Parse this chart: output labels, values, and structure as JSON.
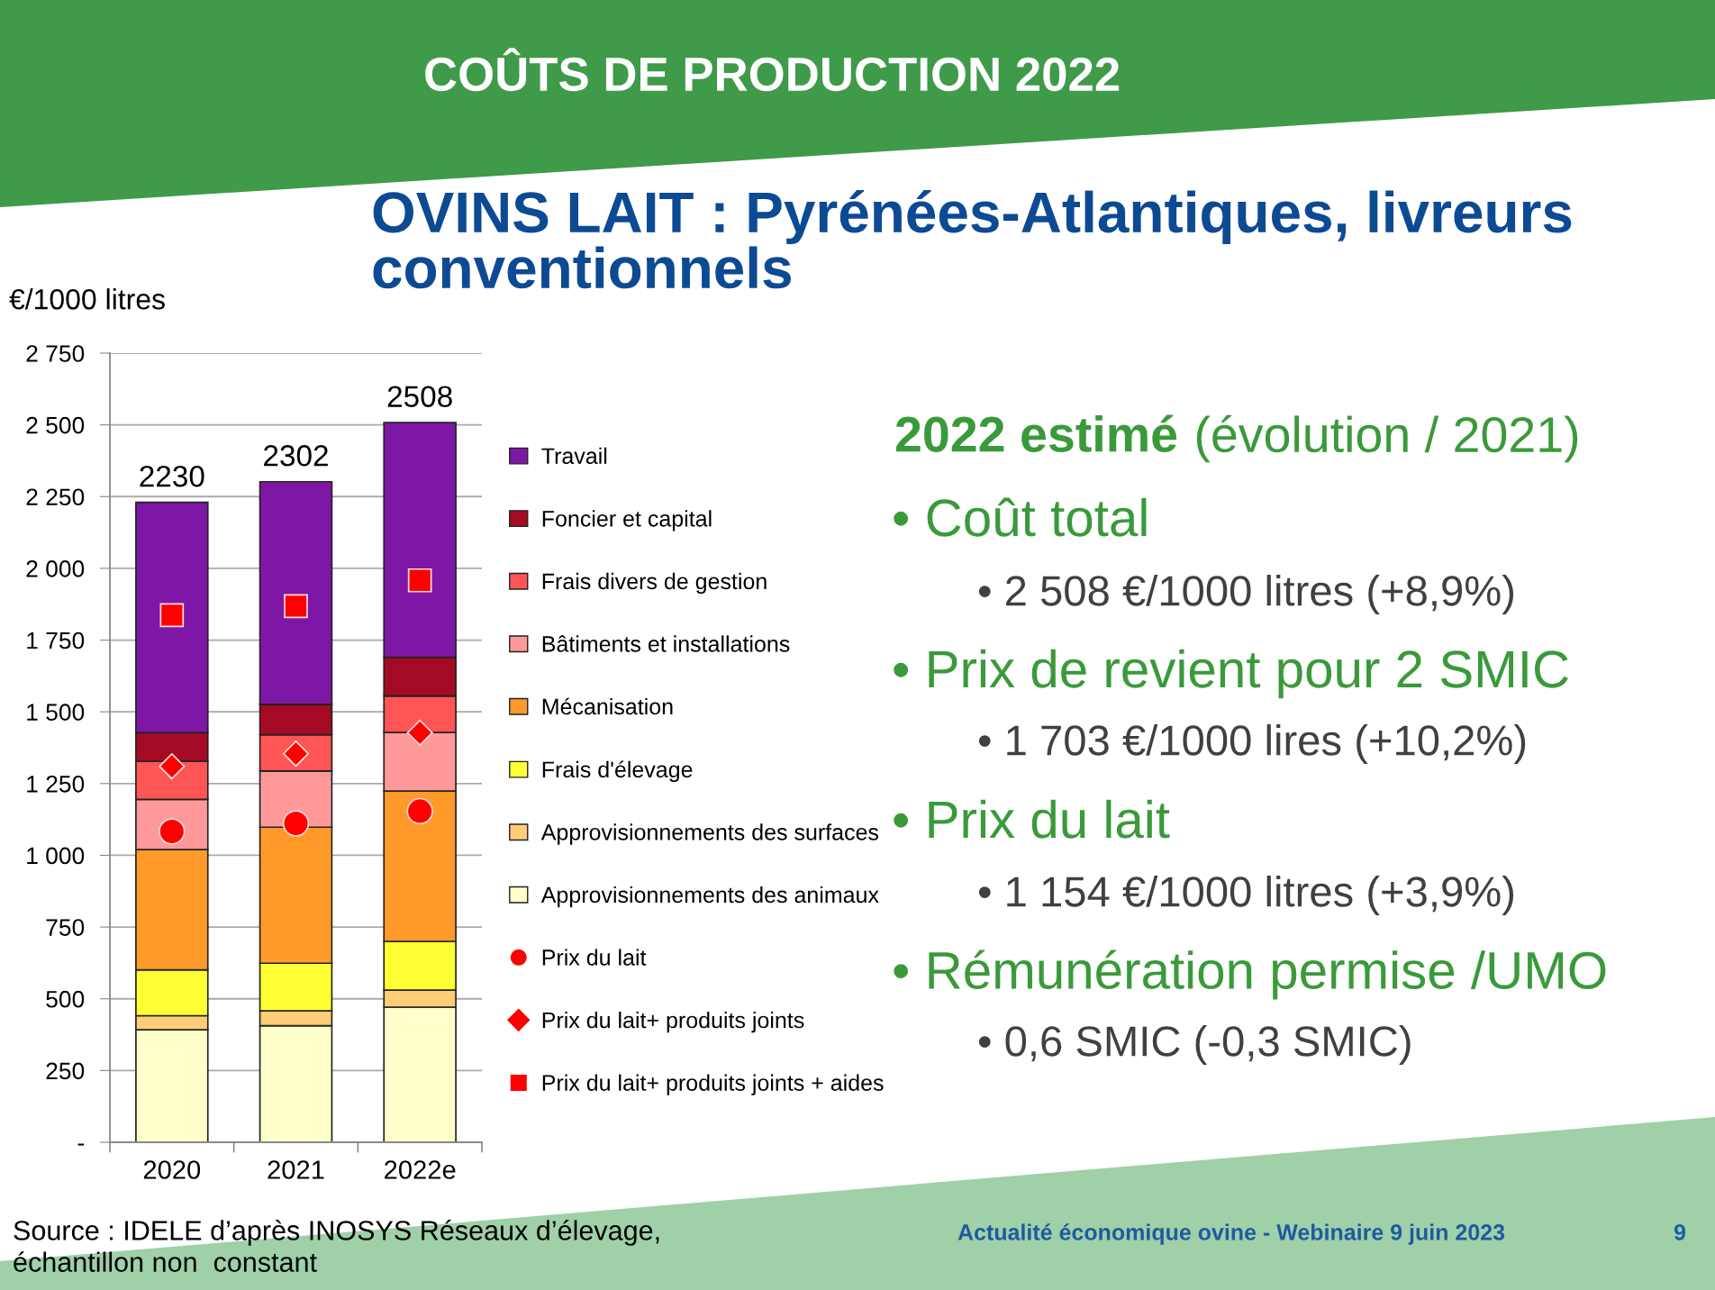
{
  "chart_data": {
    "type": "bar",
    "stacked": true,
    "title": "COÛTS DE PRODUCTION 2022",
    "subtitle": "OVINS LAIT : Pyrénées-Atlantiques, livreurs\nconventionnels",
    "ylabel": "€/1000 litres",
    "categories": [
      "2020",
      "2021",
      "2022e"
    ],
    "series": [
      {
        "name": "Approvisionnements des animaux",
        "color": "#ffffcc",
        "values": [
          392,
          406,
          471
        ]
      },
      {
        "name": "Approvisionnements des surfaces",
        "color": "#ffcc77",
        "values": [
          49,
          52,
          59
        ]
      },
      {
        "name": "Frais d'élevage",
        "color": "#ffff33",
        "values": [
          160,
          166,
          170
        ]
      },
      {
        "name": "Mécanisation",
        "color": "#ff9a2a",
        "values": [
          419,
          474,
          524
        ]
      },
      {
        "name": "Bâtiments et installations",
        "color": "#ff9999",
        "values": [
          175,
          196,
          204
        ]
      },
      {
        "name": "Frais divers de gestion",
        "color": "#ff5555",
        "values": [
          133,
          126,
          127
        ]
      },
      {
        "name": "Foncier et capital",
        "color": "#a50a24",
        "values": [
          99,
          106,
          135
        ]
      },
      {
        "name": "Travail",
        "color": "#7f17a6",
        "values": [
          803,
          776,
          818
        ]
      },
      {
        "name": "Prix du lait",
        "type": "scatter",
        "marker": "circle",
        "color": "#ff0000",
        "values": [
          1083,
          1111,
          1154
        ]
      },
      {
        "name": "Prix du lait+ produits joints",
        "type": "scatter",
        "marker": "diamond",
        "color": "#ff0000",
        "values": [
          1310,
          1354,
          1427
        ]
      },
      {
        "name": "Prix du lait+ produits joints + aides",
        "type": "scatter",
        "marker": "square",
        "color": "#ff0000",
        "values": [
          1837,
          1868,
          1958
        ]
      }
    ],
    "totals": [
      "2230",
      "2302",
      "2508"
    ],
    "ylim": [
      0,
      2750
    ],
    "yticks": [
      {
        "value": 0,
        "label": "-"
      },
      {
        "value": 250,
        "label": "250"
      },
      {
        "value": 500,
        "label": "500"
      },
      {
        "value": 750,
        "label": "750"
      },
      {
        "value": 1000,
        "label": "1 000"
      },
      {
        "value": 1250,
        "label": "1 250"
      },
      {
        "value": 1500,
        "label": "1 500"
      },
      {
        "value": 1750,
        "label": "1 750"
      },
      {
        "value": 2000,
        "label": "2 000"
      },
      {
        "value": 2250,
        "label": "2 250"
      },
      {
        "value": 2500,
        "label": "2 500"
      },
      {
        "value": 2750,
        "label": "2 750"
      }
    ],
    "grid": "y",
    "legend": "right",
    "annotations": [
      "2022 estimé",
      "(évolution / 2021)",
      "• Coût total",
      "• 2 508 €/1000 litres (+8,9%)",
      "• Prix de revient pour 2 SMIC",
      "• 1 703 €/1000 lires (+10,2%)",
      "• Prix du lait",
      "• 1 154 €/1000 litres (+3,9%)",
      "• Rémunération permise /UMO",
      "• 0,6 SMIC (-0,3 SMIC)",
      "Source : IDELE d’après INOSYS Réseaux d’élevage,\néchantillon non  constant",
      "Actualité économique ovine - Webinaire 9 juin 2023",
      "9"
    ]
  }
}
